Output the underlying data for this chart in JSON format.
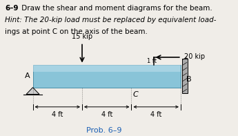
{
  "title_bold": "6–9",
  "title_normal": " Draw the shear and moment diagrams for the beam.",
  "hint_line1": "Hint: The 20-kip load must be replaced by equivalent load-",
  "hint_line2": "ings at point C on the axis of the beam.",
  "prob_label": "Prob. 6–9",
  "load1_label": "15 kip",
  "load2_label": "20 kip",
  "dist_label": "1 ft",
  "point_a": "A",
  "point_b": "B",
  "point_c": "C",
  "dim1": "4 ft",
  "dim2": "4 ft",
  "dim3": "4 ft",
  "beam_color": "#89c4d8",
  "beam_highlight": "#b8dcea",
  "bg_color": "#f0ede8",
  "wall_color": "#aaaaaa",
  "support_color": "#cccccc",
  "prob_color": "#1a5fb4"
}
